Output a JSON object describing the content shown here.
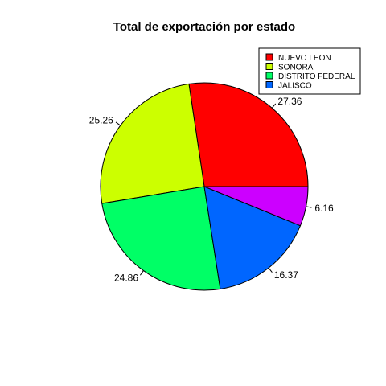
{
  "chart_data": {
    "type": "pie",
    "title": "Total de exportación por estado",
    "slices": [
      {
        "label": "NUEVO LEON",
        "value": 27.36,
        "value_label": "27.36",
        "color": "#FF0000"
      },
      {
        "label": "SONORA",
        "value": 25.26,
        "value_label": "25.26",
        "color": "#CCFF00"
      },
      {
        "label": "DISTRITO FEDERAL",
        "value": 24.86,
        "value_label": "24.86",
        "color": "#00FF66"
      },
      {
        "label": "JALISCO",
        "value": 16.37,
        "value_label": "16.37",
        "color": "#0066FF"
      },
      {
        "label": "",
        "value": 6.16,
        "value_label": "6.16",
        "color": "#CC00FF"
      }
    ],
    "legend": {
      "position": "top-right",
      "entries": [
        {
          "label": "NUEVO LEON",
          "color": "#FF0000"
        },
        {
          "label": "SONORA",
          "color": "#CCFF00"
        },
        {
          "label": "DISTRITO FEDERAL",
          "color": "#00FF66"
        },
        {
          "label": "JALISCO",
          "color": "#0066FF"
        }
      ]
    },
    "start_angle": "3 o'clock",
    "direction": "counterclockwise"
  }
}
